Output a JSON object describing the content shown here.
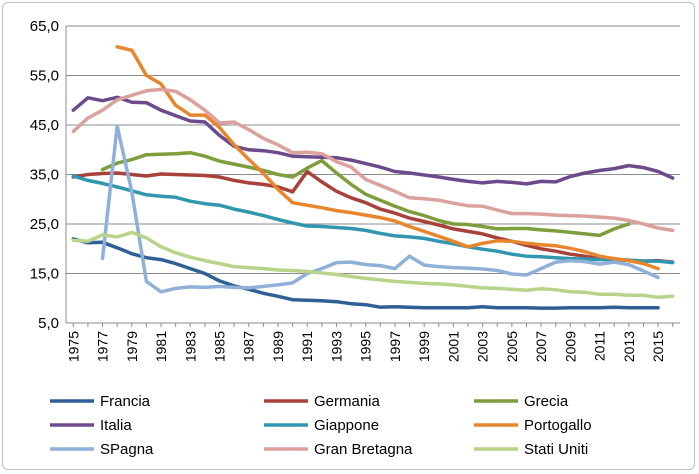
{
  "chart_data": {
    "type": "line",
    "title": "",
    "xlabel": "",
    "ylabel": "",
    "ylim": [
      5,
      65
    ],
    "yticks": [
      "5,0",
      "15,0",
      "25,0",
      "35,0",
      "45,0",
      "55,0",
      "65,0"
    ],
    "ytick_values": [
      5,
      15,
      25,
      35,
      45,
      55,
      65
    ],
    "x": [
      1975,
      1976,
      1977,
      1978,
      1979,
      1980,
      1981,
      1982,
      1983,
      1984,
      1985,
      1986,
      1987,
      1988,
      1989,
      1990,
      1991,
      1992,
      1993,
      1994,
      1995,
      1996,
      1997,
      1998,
      1999,
      2000,
      2001,
      2002,
      2003,
      2004,
      2005,
      2006,
      2007,
      2008,
      2009,
      2010,
      2011,
      2012,
      2013,
      2014,
      2015,
      2016
    ],
    "xticks": [
      "1975",
      "1977",
      "1979",
      "1981",
      "1983",
      "1985",
      "1987",
      "1989",
      "1991",
      "1993",
      "1995",
      "1997",
      "1999",
      "2001",
      "2003",
      "2005",
      "2007",
      "2009",
      "2011",
      "2013",
      "2015"
    ],
    "grid": "horizontal",
    "legend_position": "bottom",
    "series": [
      {
        "name": "Francia",
        "color": "#2e5f96",
        "values": [
          22.0,
          21.2,
          21.3,
          20.2,
          19.0,
          18.2,
          17.8,
          17.0,
          16.0,
          15.0,
          13.5,
          12.5,
          11.8,
          11.0,
          10.4,
          9.7,
          9.6,
          9.5,
          9.3,
          8.9,
          8.7,
          8.2,
          8.3,
          8.2,
          8.1,
          8.1,
          8.1,
          8.1,
          8.3,
          8.1,
          8.1,
          8.1,
          8.0,
          8.0,
          8.1,
          8.1,
          8.1,
          8.2,
          8.1,
          8.1,
          8.1,
          null
        ]
      },
      {
        "name": "Germania",
        "color": "#a8413a",
        "values": [
          34.5,
          35.0,
          35.2,
          35.3,
          35.0,
          34.7,
          35.1,
          35.0,
          34.9,
          34.8,
          34.5,
          33.8,
          33.3,
          33.0,
          32.5,
          31.5,
          35.6,
          33.5,
          31.6,
          30.3,
          29.3,
          28.0,
          27.2,
          26.2,
          25.5,
          24.8,
          24.0,
          23.5,
          23.0,
          22.2,
          21.5,
          20.7,
          20.0,
          19.5,
          18.9,
          18.5,
          18.0,
          17.8,
          17.7,
          17.5,
          17.6,
          17.3
        ]
      },
      {
        "name": "Grecia",
        "color": "#7e9e3c",
        "values": [
          null,
          null,
          36.0,
          37.3,
          38.0,
          39.0,
          39.1,
          39.2,
          39.4,
          38.7,
          37.7,
          37.1,
          36.5,
          35.8,
          35.0,
          34.5,
          36.3,
          37.8,
          35.3,
          33.0,
          31.0,
          29.8,
          28.6,
          27.5,
          26.7,
          25.7,
          25.0,
          24.9,
          24.5,
          24.0,
          24.1,
          24.1,
          23.8,
          23.6,
          23.3,
          23.0,
          22.7,
          24.0,
          25.0,
          null,
          null,
          null
        ]
      },
      {
        "name": "Italia",
        "color": "#6b4b8b",
        "values": [
          48.0,
          50.5,
          49.9,
          50.6,
          49.6,
          49.5,
          48.0,
          46.9,
          45.8,
          45.6,
          42.9,
          40.7,
          40.0,
          39.8,
          39.4,
          38.7,
          38.6,
          38.5,
          38.4,
          37.9,
          37.2,
          36.5,
          35.6,
          35.3,
          34.9,
          34.5,
          34.0,
          33.6,
          33.3,
          33.6,
          33.4,
          33.1,
          33.6,
          33.5,
          34.6,
          35.3,
          35.8,
          36.2,
          36.8,
          36.4,
          35.6,
          34.3
        ]
      },
      {
        "name": "Giappone",
        "color": "#3197b1",
        "values": [
          34.7,
          33.8,
          33.2,
          32.5,
          31.7,
          30.9,
          30.6,
          30.4,
          29.6,
          29.1,
          28.8,
          28.0,
          27.4,
          26.7,
          25.9,
          25.2,
          24.6,
          24.5,
          24.3,
          24.1,
          23.7,
          23.1,
          22.6,
          22.4,
          22.1,
          21.5,
          21.0,
          20.4,
          19.9,
          19.5,
          18.9,
          18.5,
          18.4,
          18.2,
          18.0,
          17.9,
          17.8,
          17.8,
          17.7,
          17.5,
          17.5,
          17.2
        ]
      },
      {
        "name": "Portogallo",
        "color": "#e8862e",
        "values": [
          null,
          null,
          null,
          60.8,
          60.1,
          55.0,
          53.3,
          49.0,
          47.0,
          47.0,
          44.5,
          41.0,
          38.1,
          35.2,
          32.0,
          29.3,
          28.8,
          28.3,
          27.7,
          27.3,
          26.8,
          26.3,
          25.6,
          24.5,
          23.5,
          22.5,
          21.5,
          20.4,
          21.1,
          21.6,
          21.5,
          21.1,
          20.8,
          20.6,
          20.1,
          19.4,
          18.5,
          18.0,
          17.6,
          17.0,
          16.0,
          null
        ]
      },
      {
        "name": "SPagna",
        "color": "#8fb0d9",
        "values": [
          null,
          null,
          18.0,
          44.8,
          31.5,
          13.4,
          11.3,
          12.0,
          12.3,
          12.2,
          12.4,
          12.2,
          12.1,
          12.4,
          12.7,
          13.1,
          15.0,
          16.0,
          17.2,
          17.3,
          16.8,
          16.6,
          16.0,
          18.5,
          16.7,
          16.4,
          16.2,
          16.1,
          15.9,
          15.6,
          14.9,
          14.7,
          16.0,
          17.3,
          17.6,
          17.4,
          16.9,
          17.3,
          16.8,
          15.5,
          14.2,
          null
        ]
      },
      {
        "name": "Gran Bretagna",
        "color": "#dca09d",
        "values": [
          43.7,
          46.4,
          48.0,
          50.1,
          51.0,
          51.9,
          52.2,
          51.8,
          50.1,
          48.0,
          45.4,
          45.6,
          44.1,
          42.3,
          41.0,
          39.4,
          39.5,
          39.2,
          37.6,
          36.5,
          34.0,
          32.8,
          31.6,
          30.3,
          30.1,
          29.8,
          29.2,
          28.7,
          28.6,
          27.8,
          27.1,
          27.1,
          27.0,
          26.8,
          26.7,
          26.6,
          26.4,
          26.2,
          25.7,
          25.0,
          24.2,
          23.7
        ]
      },
      {
        "name": "Stati Uniti",
        "color": "#b7d48a",
        "values": [
          21.7,
          21.5,
          22.8,
          22.4,
          23.3,
          22.2,
          20.4,
          19.2,
          18.3,
          17.6,
          17.0,
          16.4,
          16.2,
          16.0,
          15.7,
          15.6,
          15.4,
          15.1,
          14.8,
          14.4,
          14.0,
          13.7,
          13.4,
          13.2,
          13.0,
          12.9,
          12.7,
          12.4,
          12.1,
          12.0,
          11.8,
          11.6,
          11.9,
          11.7,
          11.3,
          11.2,
          10.8,
          10.8,
          10.6,
          10.6,
          10.2,
          10.4
        ]
      }
    ]
  }
}
